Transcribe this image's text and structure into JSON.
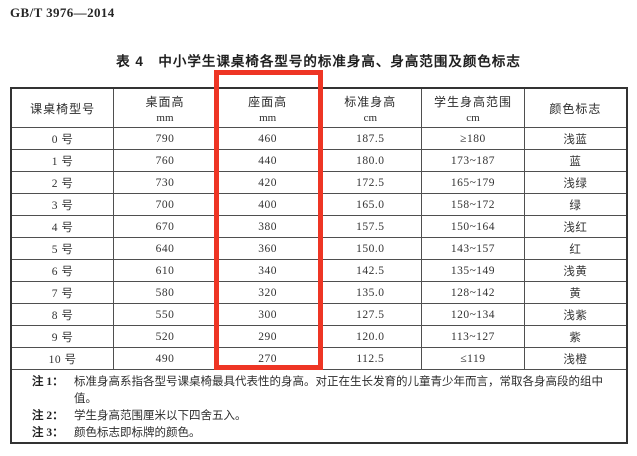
{
  "page": {
    "standard_number": "GB/T 3976—2014"
  },
  "table": {
    "title": "表 4　中小学生课桌椅各型号的标准身高、身高范围及颜色标志",
    "columns": [
      {
        "label": "课桌椅型号",
        "unit": ""
      },
      {
        "label": "桌面高",
        "unit": "mm"
      },
      {
        "label": "座面高",
        "unit": "mm"
      },
      {
        "label": "标准身高",
        "unit": "cm"
      },
      {
        "label": "学生身高范围",
        "unit": "cm"
      },
      {
        "label": "颜色标志",
        "unit": ""
      }
    ],
    "rows": [
      [
        "0 号",
        "790",
        "460",
        "187.5",
        "≥180",
        "浅蓝"
      ],
      [
        "1 号",
        "760",
        "440",
        "180.0",
        "173~187",
        "蓝"
      ],
      [
        "2 号",
        "730",
        "420",
        "172.5",
        "165~179",
        "浅绿"
      ],
      [
        "3 号",
        "700",
        "400",
        "165.0",
        "158~172",
        "绿"
      ],
      [
        "4 号",
        "670",
        "380",
        "157.5",
        "150~164",
        "浅红"
      ],
      [
        "5 号",
        "640",
        "360",
        "150.0",
        "143~157",
        "红"
      ],
      [
        "6 号",
        "610",
        "340",
        "142.5",
        "135~149",
        "浅黄"
      ],
      [
        "7 号",
        "580",
        "320",
        "135.0",
        "128~142",
        "黄"
      ],
      [
        "8 号",
        "550",
        "300",
        "127.5",
        "120~134",
        "浅紫"
      ],
      [
        "9 号",
        "520",
        "290",
        "120.0",
        "113~127",
        "紫"
      ],
      [
        "10 号",
        "490",
        "270",
        "112.5",
        "≤119",
        "浅橙"
      ]
    ],
    "notes": [
      {
        "label": "注 1：",
        "text": "标准身高系指各型号课桌椅最具代表性的身高。对正在生长发育的儿童青少年而言，常取各身高段的组中值。"
      },
      {
        "label": "注 2：",
        "text": "学生身高范围厘米以下四舍五入。"
      },
      {
        "label": "注 3：",
        "text": "颜色标志即标牌的颜色。"
      }
    ]
  },
  "annotation": {
    "type": "red-rectangle-highlight",
    "highlighted_column": "座面高",
    "color": "#ee3524"
  }
}
